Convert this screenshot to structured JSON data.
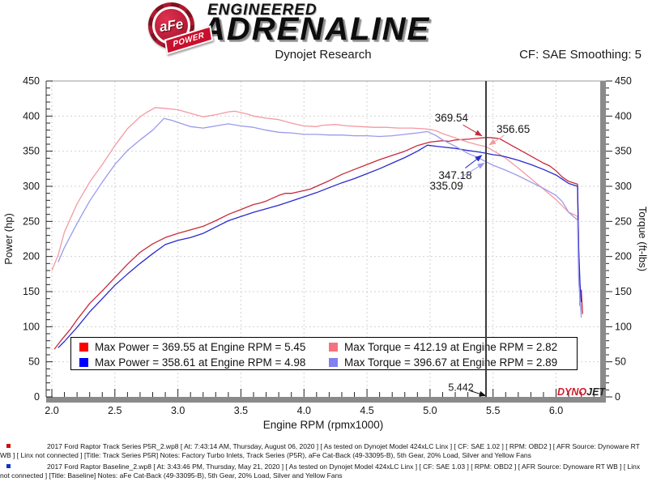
{
  "header": {
    "badge": {
      "brand": "aFe",
      "sub": "POWER"
    },
    "brand_top": "ENGINEERED",
    "brand_main": "ADRENALINE",
    "subtitle": "Dynojet Research",
    "smoothing": "CF: SAE Smoothing: 5"
  },
  "chart_data": {
    "type": "line",
    "title": "Dynojet Research",
    "xlabel": "Engine RPM (rpmx1000)",
    "ylabel_left": "Power (hp)",
    "ylabel_right": "Torque (ft-lbs)",
    "xlim": [
      1.955,
      6.35
    ],
    "ylim": [
      0,
      450
    ],
    "x_major_ticks": [
      2.0,
      2.5,
      3.0,
      3.5,
      4.0,
      4.5,
      5.0,
      5.5,
      6.0
    ],
    "x_minor_step": 0.1,
    "x_minor_end": 6.3,
    "y_major_step": 50,
    "y_minor_step": 10,
    "grid": true,
    "cursor_x": 5.442,
    "legend": [
      {
        "color": "#ff0000",
        "label": "Max Power = 369.55 at Engine RPM = 5.45"
      },
      {
        "color": "#f4747e",
        "label": "Max Torque = 412.19 at Engine RPM = 2.82"
      },
      {
        "color": "#0000ff",
        "label": "Max Power = 358.61 at Engine RPM = 4.98"
      },
      {
        "color": "#8080f0",
        "label": "Max Torque = 396.67 at Engine RPM = 2.89"
      }
    ],
    "series": [
      {
        "name": "Track Series P5R - Power (hp)",
        "color": "#c62b3a",
        "points": [
          [
            2.02,
            68
          ],
          [
            2.08,
            82
          ],
          [
            2.15,
            97
          ],
          [
            2.2,
            110
          ],
          [
            2.3,
            133
          ],
          [
            2.4,
            151
          ],
          [
            2.5,
            170
          ],
          [
            2.6,
            189
          ],
          [
            2.7,
            206
          ],
          [
            2.8,
            218
          ],
          [
            2.9,
            227
          ],
          [
            3.0,
            233
          ],
          [
            3.1,
            238
          ],
          [
            3.2,
            243
          ],
          [
            3.3,
            251
          ],
          [
            3.4,
            260
          ],
          [
            3.5,
            267
          ],
          [
            3.6,
            274
          ],
          [
            3.65,
            276
          ],
          [
            3.7,
            279
          ],
          [
            3.8,
            287
          ],
          [
            3.85,
            290
          ],
          [
            3.9,
            290
          ],
          [
            4.0,
            294
          ],
          [
            4.05,
            296
          ],
          [
            4.1,
            300
          ],
          [
            4.2,
            308
          ],
          [
            4.3,
            317
          ],
          [
            4.4,
            324
          ],
          [
            4.5,
            331
          ],
          [
            4.6,
            338
          ],
          [
            4.7,
            344
          ],
          [
            4.8,
            350
          ],
          [
            4.9,
            358
          ],
          [
            5.0,
            363
          ],
          [
            5.1,
            365
          ],
          [
            5.15,
            364
          ],
          [
            5.2,
            366
          ],
          [
            5.3,
            367
          ],
          [
            5.35,
            368
          ],
          [
            5.45,
            369.6
          ],
          [
            5.5,
            369
          ],
          [
            5.55,
            368
          ],
          [
            5.6,
            363
          ],
          [
            5.7,
            353
          ],
          [
            5.8,
            343
          ],
          [
            5.9,
            333
          ],
          [
            5.95,
            329
          ],
          [
            6.0,
            322
          ],
          [
            6.05,
            313
          ],
          [
            6.1,
            307
          ],
          [
            6.17,
            303
          ],
          [
            6.18,
            200
          ],
          [
            6.19,
            130
          ],
          [
            6.2,
            152
          ],
          [
            6.21,
            118
          ]
        ]
      },
      {
        "name": "Track Series P5R - Torque (ft-lbs)",
        "color": "#f39aa2",
        "points": [
          [
            2.0,
            180
          ],
          [
            2.05,
            202
          ],
          [
            2.1,
            235
          ],
          [
            2.2,
            275
          ],
          [
            2.3,
            306
          ],
          [
            2.4,
            331
          ],
          [
            2.5,
            358
          ],
          [
            2.6,
            382
          ],
          [
            2.7,
            399
          ],
          [
            2.75,
            405
          ],
          [
            2.82,
            412.2
          ],
          [
            2.9,
            411
          ],
          [
            3.0,
            409
          ],
          [
            3.1,
            404
          ],
          [
            3.2,
            399
          ],
          [
            3.3,
            402
          ],
          [
            3.4,
            406
          ],
          [
            3.45,
            407
          ],
          [
            3.55,
            403
          ],
          [
            3.6,
            400
          ],
          [
            3.7,
            397
          ],
          [
            3.8,
            395
          ],
          [
            3.9,
            390
          ],
          [
            4.0,
            386
          ],
          [
            4.1,
            385
          ],
          [
            4.15,
            387
          ],
          [
            4.25,
            388
          ],
          [
            4.35,
            386
          ],
          [
            4.45,
            385
          ],
          [
            4.55,
            384
          ],
          [
            4.65,
            384
          ],
          [
            4.75,
            383
          ],
          [
            4.85,
            383
          ],
          [
            4.95,
            382
          ],
          [
            5.0,
            381
          ],
          [
            5.05,
            379
          ],
          [
            5.1,
            375
          ],
          [
            5.2,
            369
          ],
          [
            5.3,
            363
          ],
          [
            5.38,
            359
          ],
          [
            5.442,
            356.7
          ],
          [
            5.5,
            351
          ],
          [
            5.6,
            340
          ],
          [
            5.7,
            326
          ],
          [
            5.8,
            311
          ],
          [
            5.9,
            296
          ],
          [
            6.0,
            281
          ],
          [
            6.05,
            272
          ],
          [
            6.1,
            263
          ],
          [
            6.15,
            259
          ],
          [
            6.17,
            257
          ],
          [
            6.18,
            170
          ],
          [
            6.2,
            122
          ]
        ]
      },
      {
        "name": "Baseline - Power (hp)",
        "color": "#2a2ace",
        "points": [
          [
            2.05,
            70
          ],
          [
            2.1,
            79
          ],
          [
            2.2,
            99
          ],
          [
            2.3,
            121
          ],
          [
            2.4,
            140
          ],
          [
            2.5,
            159
          ],
          [
            2.6,
            175
          ],
          [
            2.7,
            190
          ],
          [
            2.8,
            204
          ],
          [
            2.9,
            217
          ],
          [
            3.0,
            223
          ],
          [
            3.1,
            227
          ],
          [
            3.2,
            233
          ],
          [
            3.3,
            242
          ],
          [
            3.4,
            251
          ],
          [
            3.5,
            257
          ],
          [
            3.6,
            263
          ],
          [
            3.7,
            268
          ],
          [
            3.8,
            273
          ],
          [
            3.9,
            279
          ],
          [
            4.0,
            285
          ],
          [
            4.1,
            291
          ],
          [
            4.2,
            298
          ],
          [
            4.3,
            305
          ],
          [
            4.4,
            311
          ],
          [
            4.5,
            318
          ],
          [
            4.6,
            325
          ],
          [
            4.7,
            333
          ],
          [
            4.8,
            341
          ],
          [
            4.9,
            350
          ],
          [
            4.98,
            358.6
          ],
          [
            5.05,
            357
          ],
          [
            5.1,
            356
          ],
          [
            5.2,
            354
          ],
          [
            5.3,
            351
          ],
          [
            5.38,
            349
          ],
          [
            5.442,
            347.2
          ],
          [
            5.5,
            345
          ],
          [
            5.55,
            344
          ],
          [
            5.6,
            342
          ],
          [
            5.7,
            337
          ],
          [
            5.8,
            331
          ],
          [
            5.9,
            324
          ],
          [
            6.0,
            316
          ],
          [
            6.05,
            310
          ],
          [
            6.1,
            304
          ],
          [
            6.17,
            300
          ],
          [
            6.18,
            210
          ],
          [
            6.19,
            160
          ],
          [
            6.2,
            135
          ]
        ]
      },
      {
        "name": "Baseline - Torque (ft-lbs)",
        "color": "#9a9aec",
        "points": [
          [
            2.05,
            192
          ],
          [
            2.1,
            213
          ],
          [
            2.2,
            247
          ],
          [
            2.3,
            279
          ],
          [
            2.4,
            306
          ],
          [
            2.5,
            331
          ],
          [
            2.6,
            351
          ],
          [
            2.7,
            366
          ],
          [
            2.8,
            380
          ],
          [
            2.89,
            396.7
          ],
          [
            2.95,
            394
          ],
          [
            3.0,
            391
          ],
          [
            3.1,
            385
          ],
          [
            3.2,
            383
          ],
          [
            3.3,
            386
          ],
          [
            3.4,
            389
          ],
          [
            3.5,
            386
          ],
          [
            3.6,
            384
          ],
          [
            3.7,
            380
          ],
          [
            3.8,
            377
          ],
          [
            3.9,
            376
          ],
          [
            4.0,
            374
          ],
          [
            4.1,
            374
          ],
          [
            4.2,
            373
          ],
          [
            4.3,
            373
          ],
          [
            4.4,
            372
          ],
          [
            4.5,
            372
          ],
          [
            4.6,
            371
          ],
          [
            4.7,
            372
          ],
          [
            4.8,
            374
          ],
          [
            4.9,
            376
          ],
          [
            4.98,
            378
          ],
          [
            5.05,
            372
          ],
          [
            5.1,
            366
          ],
          [
            5.2,
            357
          ],
          [
            5.3,
            347
          ],
          [
            5.38,
            341
          ],
          [
            5.442,
            335.1
          ],
          [
            5.5,
            330
          ],
          [
            5.6,
            323
          ],
          [
            5.7,
            315
          ],
          [
            5.8,
            306
          ],
          [
            5.9,
            297
          ],
          [
            6.0,
            287
          ],
          [
            6.05,
            278
          ],
          [
            6.1,
            263
          ],
          [
            6.15,
            255
          ],
          [
            6.17,
            252
          ],
          [
            6.18,
            165
          ],
          [
            6.2,
            113
          ]
        ]
      }
    ],
    "annotations": [
      {
        "text": "369.54",
        "color": "#c62b3a",
        "tx": 5.17,
        "ty": 397,
        "ax": 5.41,
        "ay": 372
      },
      {
        "text": "356.65",
        "color": "#f39aa2",
        "tx": 5.66,
        "ty": 381,
        "ax": 5.47,
        "ay": 359
      },
      {
        "text": "347.18",
        "color": "#2a2ace",
        "tx": 5.2,
        "ty": 315,
        "ax": 5.41,
        "ay": 344
      },
      {
        "text": "335.09",
        "color": "#9a9aec",
        "tx": 5.13,
        "ty": 300,
        "ax": 5.43,
        "ay": 333
      },
      {
        "text": "5.442",
        "color": "#111111",
        "tx": 5.245,
        "ty": 13,
        "ax": 5.442,
        "ay": 1.5
      }
    ],
    "watermark": {
      "part1": "DYNO",
      "part2": "JET"
    }
  },
  "footer": {
    "runs": [
      {
        "bullet_color": "#cc1111",
        "line": "2017 Ford Raptor Track Series P5R_2.wp8 [ At: 7:43:14 AM, Thursday, August 06, 2020 ] [ As tested on Dynojet Model 424xLC Linx ] [ CF: SAE 1.02 ] [ RPM: OBD2 ] [ AFR Source: Dynoware RT WB ] [ Linx not connected ] [Title: Track Series P5R]   Notes: Factory Turbo Inlets, Track Series (P5R), aFe Cat-Back (49-33095-B), 5th Gear, 20% Load, Silver and Yellow Fans"
      },
      {
        "bullet_color": "#1133cc",
        "line": "2017 Ford Raptor Baseline_2.wp8 [ At: 3:43:46 PM, Thursday, May 21, 2020 ] [ As tested on Dynojet Model 424xLC Linx ] [ CF: SAE 1.03 ] [ RPM: OBD2 ] [ AFR Source: Dynoware RT WB ] [ Linx not connected ] [Title: Baseline]   Notes: aFe Cat-Back (49-33095-B), 5th Gear, 20% Load, Silver and Yellow Fans"
      }
    ]
  }
}
